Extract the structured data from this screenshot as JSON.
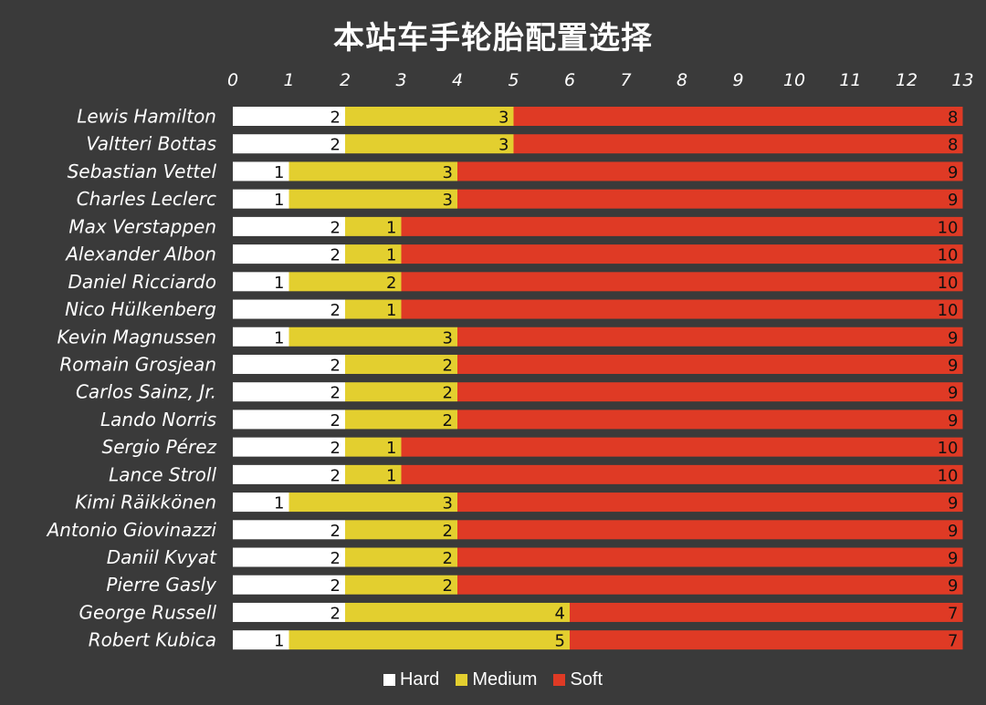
{
  "colors": {
    "background": "#3a3a3a",
    "hard": "#ffffff",
    "medium": "#e3cf2f",
    "soft": "#df3a25"
  },
  "chart_data": {
    "type": "bar",
    "orientation": "horizontal",
    "stacked": true,
    "title": "本站车手轮胎配置选择",
    "xlim": [
      0,
      13
    ],
    "xticks": [
      "0",
      "1",
      "2",
      "3",
      "4",
      "5",
      "6",
      "7",
      "8",
      "9",
      "10",
      "11",
      "12",
      "13"
    ],
    "legend_position": "bottom",
    "categories": [
      "Lewis Hamilton",
      "Valtteri Bottas",
      "Sebastian Vettel",
      "Charles Leclerc",
      "Max Verstappen",
      "Alexander Albon",
      "Daniel Ricciardo",
      "Nico Hülkenberg",
      "Kevin Magnussen",
      "Romain Grosjean",
      "Carlos Sainz, Jr.",
      "Lando Norris",
      "Sergio Pérez",
      "Lance Stroll",
      "Kimi Räikkönen",
      "Antonio Giovinazzi",
      "Daniil Kvyat",
      "Pierre Gasly",
      "George Russell",
      "Robert Kubica"
    ],
    "series": [
      {
        "name": "Hard",
        "color": "#ffffff",
        "values": [
          2,
          2,
          1,
          1,
          2,
          2,
          1,
          2,
          1,
          2,
          2,
          2,
          2,
          2,
          1,
          2,
          2,
          2,
          2,
          1
        ]
      },
      {
        "name": "Medium",
        "color": "#e3cf2f",
        "values": [
          3,
          3,
          3,
          3,
          1,
          1,
          2,
          1,
          3,
          2,
          2,
          2,
          1,
          1,
          3,
          2,
          2,
          2,
          4,
          5
        ]
      },
      {
        "name": "Soft",
        "color": "#df3a25",
        "values": [
          8,
          8,
          9,
          9,
          10,
          10,
          10,
          10,
          9,
          9,
          9,
          9,
          10,
          10,
          9,
          9,
          9,
          9,
          7,
          7
        ]
      }
    ]
  }
}
